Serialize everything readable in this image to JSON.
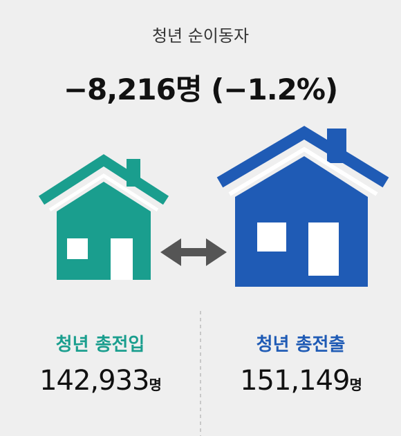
{
  "title": "청년 순이동자",
  "headline": "−8,216명 (−1.2%)",
  "inflow": {
    "label": "청년 총전입",
    "value": "142,933",
    "unit": "명"
  },
  "outflow": {
    "label": "청년 총전출",
    "value": "151,149",
    "unit": "명"
  }
}
